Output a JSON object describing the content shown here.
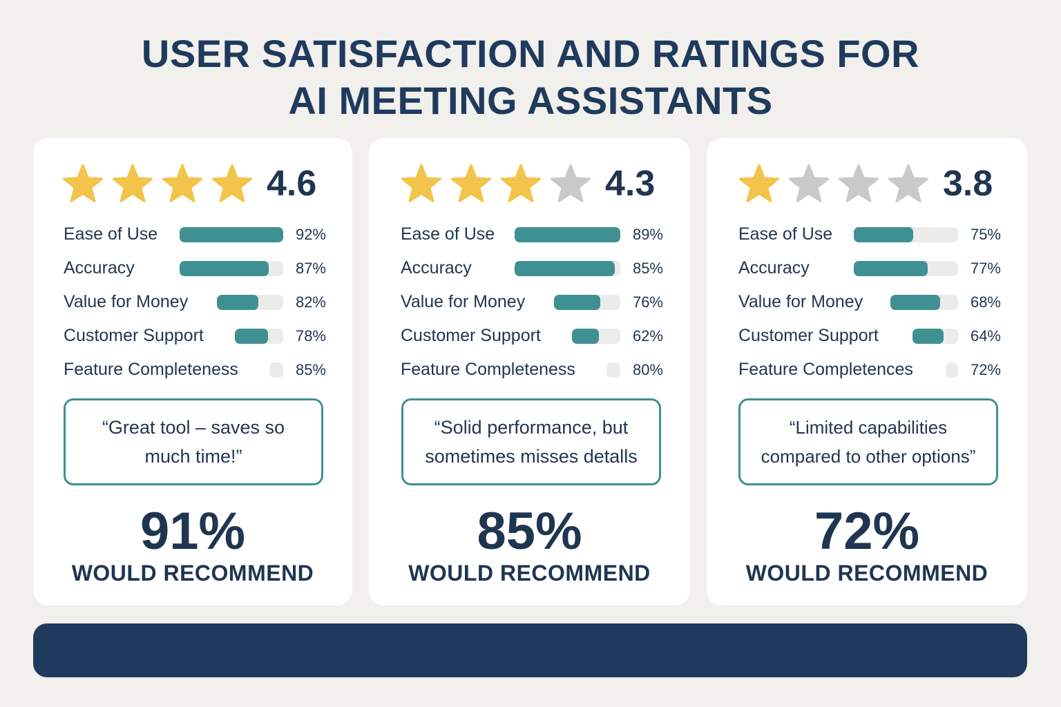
{
  "title": {
    "line1": "USER SATISFACTION AND RATINGS FOR",
    "line2": "AI MEETING ASSISTANTS"
  },
  "colors": {
    "star_filled": "#f2c44b",
    "star_empty": "#c9c9c5",
    "bar_fill": "#3f9093",
    "bar_track": "#ebebea",
    "navy": "#1f3a5c"
  },
  "cards": [
    {
      "rating": "4.6",
      "stars_filled": 4,
      "stars_total": 4,
      "metrics": [
        {
          "label": "Ease of Use",
          "percent": "92%",
          "fill": 1.0
        },
        {
          "label": "Accuracy",
          "percent": "87%",
          "fill": 0.86
        },
        {
          "label": "Value for Money",
          "percent": "82%",
          "fill": 0.62
        },
        {
          "label": "Customer Support",
          "percent": "78%",
          "fill": 0.68
        },
        {
          "label": "Feature Completeness",
          "percent": "85%",
          "fill": 0.0
        }
      ],
      "quote": "“Great tool – saves so much time!”",
      "recommend_pct": "91%",
      "recommend_label": "WOULD RECOMMEND"
    },
    {
      "rating": "4.3",
      "stars_filled": 3,
      "stars_total": 4,
      "metrics": [
        {
          "label": "Ease of Use",
          "percent": "89%",
          "fill": 1.0
        },
        {
          "label": "Accuracy",
          "percent": "85%",
          "fill": 0.95
        },
        {
          "label": "Value for Money",
          "percent": "76%",
          "fill": 0.7
        },
        {
          "label": "Customer Support",
          "percent": "62%",
          "fill": 0.55
        },
        {
          "label": "Feature Completeness",
          "percent": "80%",
          "fill": 0.0
        }
      ],
      "quote": "“Solid performance, but sometimes misses detalls",
      "recommend_pct": "85%",
      "recommend_label": "WOULD RECOMMEND"
    },
    {
      "rating": "3.8",
      "stars_filled": 1,
      "stars_total": 4,
      "metrics": [
        {
          "label": "Ease of Use",
          "percent": "75%",
          "fill": 0.57
        },
        {
          "label": "Accuracy",
          "percent": "77%",
          "fill": 0.71
        },
        {
          "label": "Value for Money",
          "percent": "68%",
          "fill": 0.73
        },
        {
          "label": "Customer Support",
          "percent": "64%",
          "fill": 0.68
        },
        {
          "label": "Feature Completences",
          "percent": "72%",
          "fill": 0.0
        }
      ],
      "quote": "“Limited capabilities compared to other options”",
      "recommend_pct": "72%",
      "recommend_label": "WOULD RECOMMEND"
    }
  ]
}
